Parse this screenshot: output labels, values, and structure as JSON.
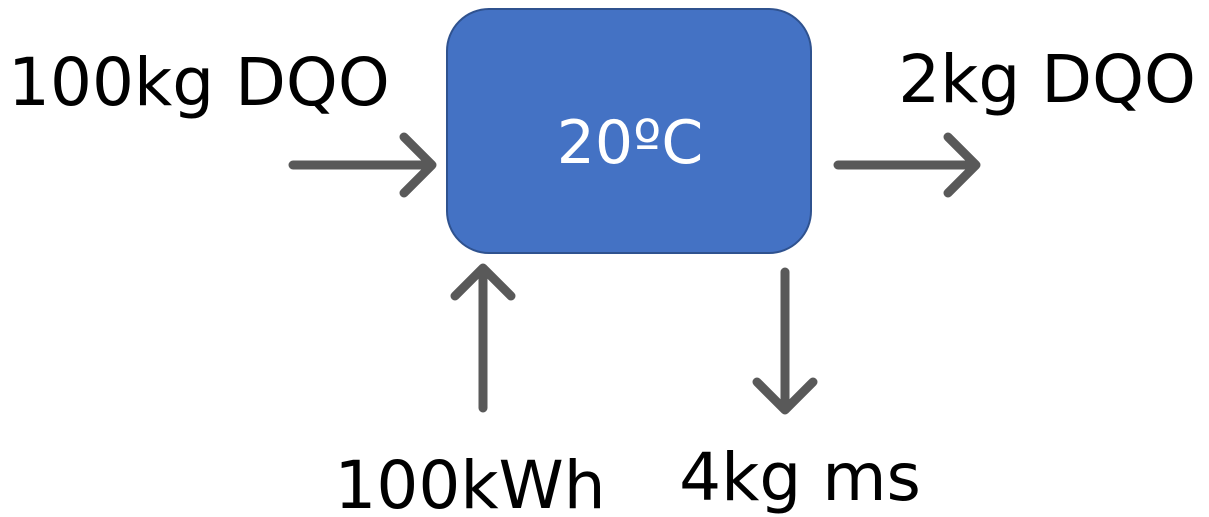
{
  "nodes": [
    {
      "label": "20ºC"
    }
  ],
  "flows": [
    {
      "label": "100kg DQO"
    },
    {
      "label": "2kg DQO"
    },
    {
      "label": "100kWh"
    },
    {
      "label": "4kg ms"
    }
  ]
}
